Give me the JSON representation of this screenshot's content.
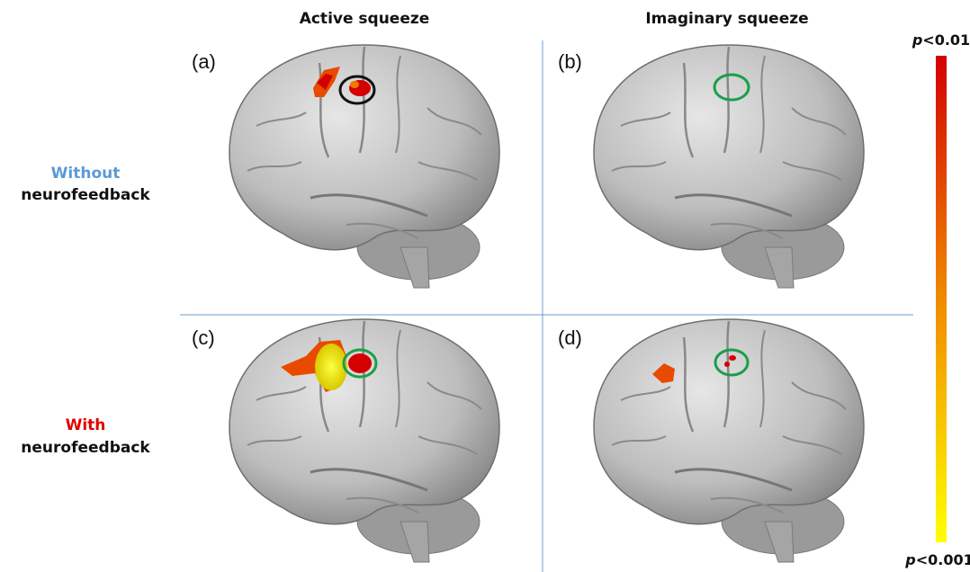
{
  "column_headers": [
    "Active squeeze",
    "Imaginary squeeze"
  ],
  "rows": [
    {
      "label_lines": [
        "Without",
        "neurofeedback"
      ]
    },
    {
      "label_lines": [
        "With",
        "neurofeedback"
      ]
    }
  ],
  "panels": [
    {
      "label": "(a)"
    },
    {
      "label": "(b)"
    },
    {
      "label": "(c)"
    },
    {
      "label": "(d)"
    }
  ],
  "colorbar": {
    "top": {
      "variable": "p",
      "condition": "<0.01"
    },
    "bottom": {
      "variable": "p",
      "condition": "<0.001"
    }
  }
}
